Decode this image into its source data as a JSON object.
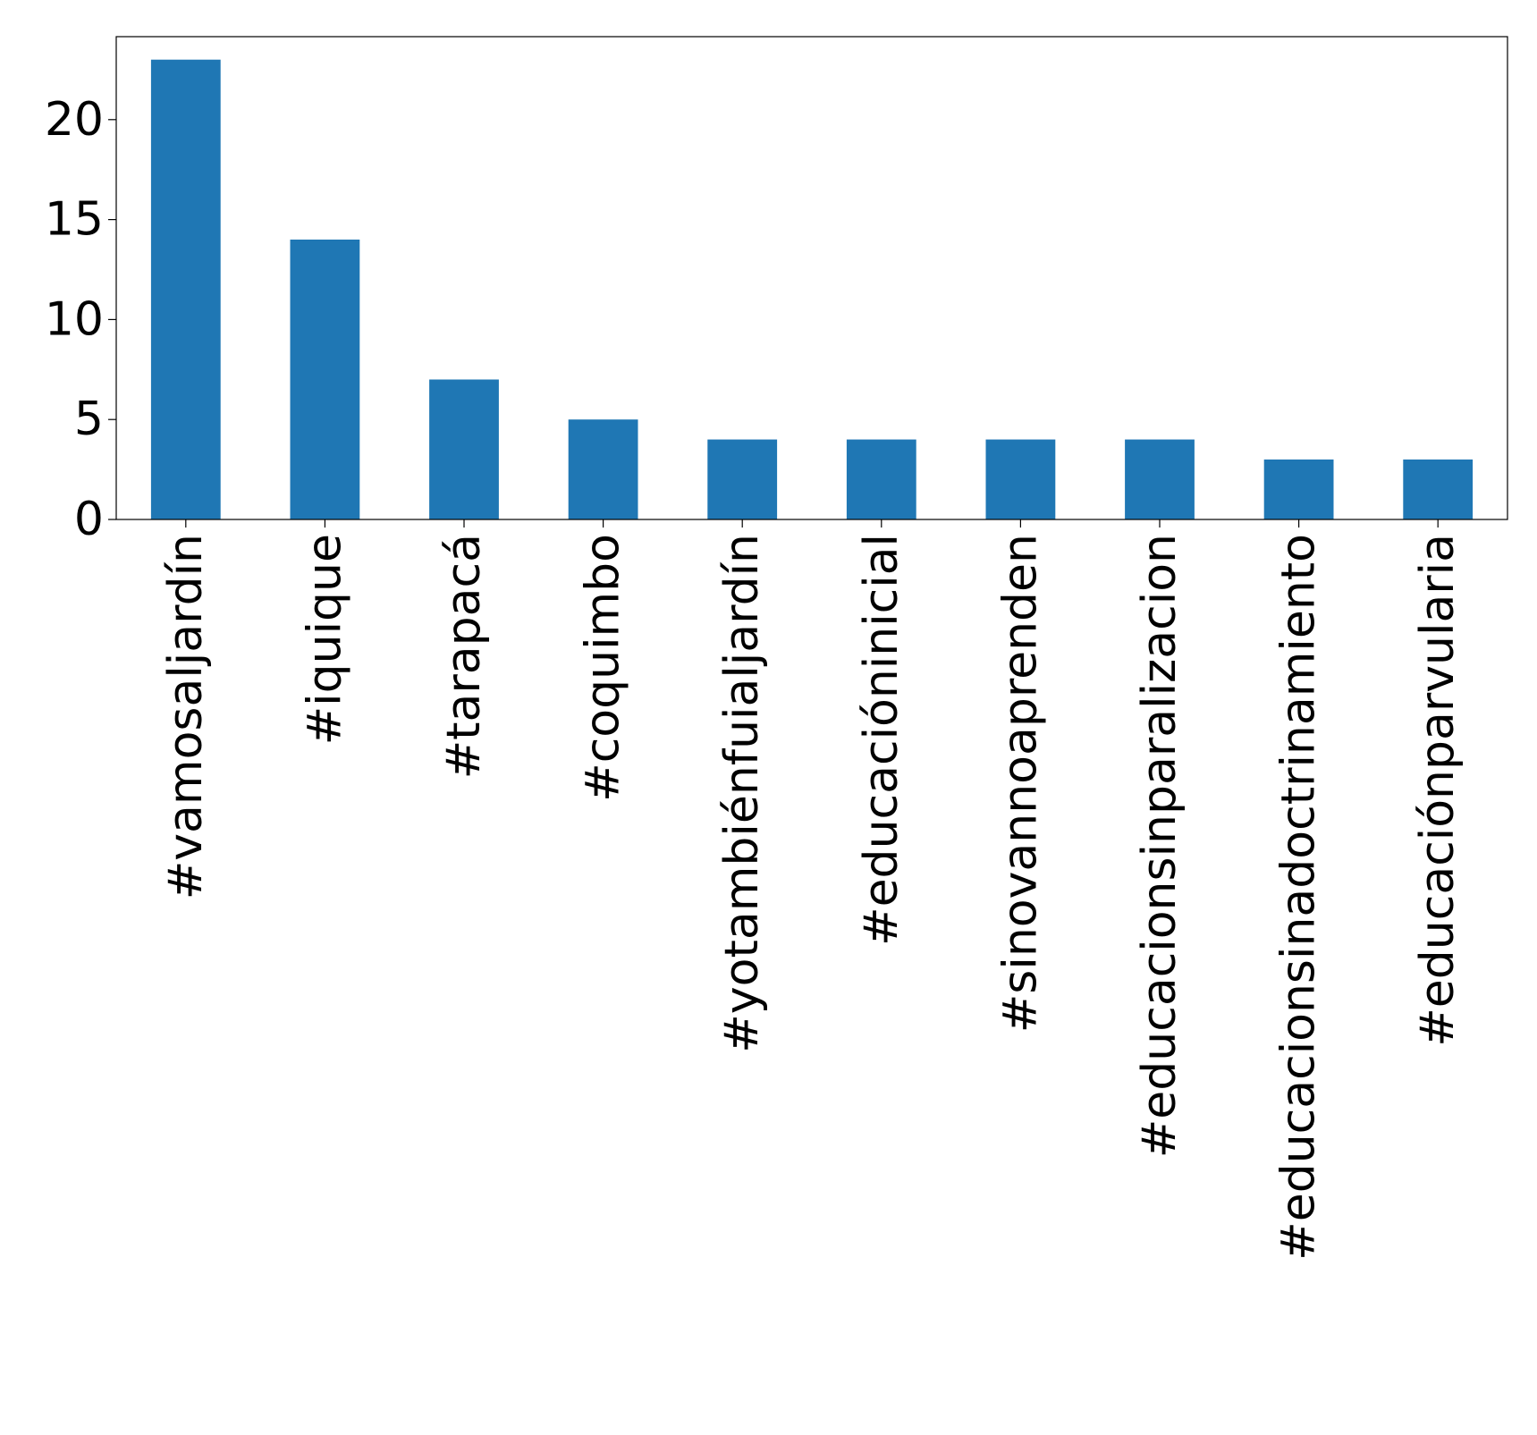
{
  "chart_data": {
    "type": "bar",
    "title": "",
    "xlabel": "",
    "ylabel": "",
    "categories": [
      "#vamosaljardín",
      "#iquique",
      "#tarapacá",
      "#coquimbo",
      "#yotambiénfuialjardín",
      "#educacióninicial",
      "#sinovannoaprenden",
      "#educacionsinparalizacion",
      "#educacionsinadoctrinamiento",
      "#educaciónparvularia"
    ],
    "values": [
      23,
      14,
      7,
      5,
      4,
      4,
      4,
      4,
      3,
      3
    ],
    "ylim": [
      0,
      24.15
    ],
    "yticks": [
      0,
      5,
      10,
      15,
      20
    ],
    "grid": false,
    "legend": "none",
    "bar_color": "#1f77b4"
  }
}
